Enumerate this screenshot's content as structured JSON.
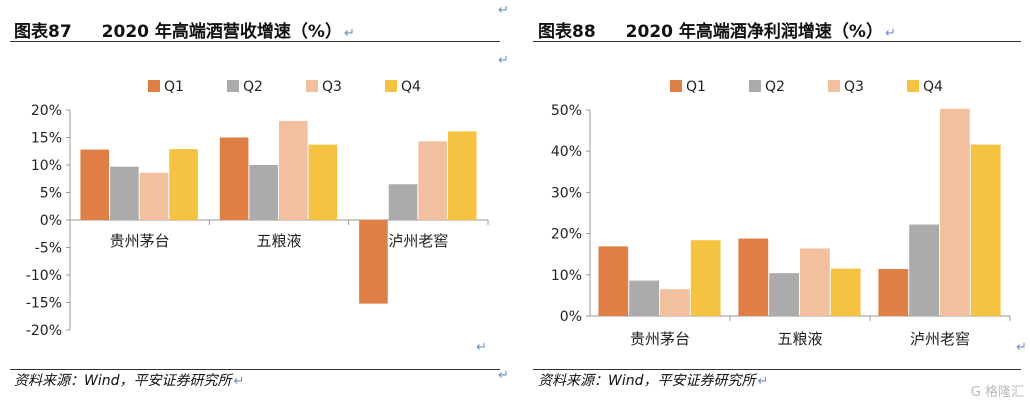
{
  "charts": [
    {
      "figure_no": "图表87",
      "title": "2020 年高端酒营收增速（%）",
      "source": "资料来源：Wind，平安证券研究所"
    },
    {
      "figure_no": "图表88",
      "title": "2020 年高端酒净利润增速（%）",
      "source": "资料来源：Wind，平安证券研究所"
    }
  ],
  "return_mark": "↵",
  "watermark": "格隆汇",
  "chart_data": [
    {
      "type": "bar",
      "categories": [
        "贵州茅台",
        "五粮液",
        "泸州老窖"
      ],
      "series": [
        {
          "name": "Q1",
          "color": "#E07F45",
          "values": [
            12.8,
            15.0,
            -15.2
          ]
        },
        {
          "name": "Q2",
          "color": "#ABABAB",
          "values": [
            9.7,
            10.0,
            6.5
          ]
        },
        {
          "name": "Q3",
          "color": "#F2C09E",
          "values": [
            8.6,
            18.0,
            14.3
          ]
        },
        {
          "name": "Q4",
          "color": "#F5C242",
          "values": [
            12.9,
            13.7,
            16.1
          ]
        }
      ],
      "ylim": [
        -20,
        20
      ],
      "yticks": [
        20,
        15,
        10,
        5,
        0,
        -5,
        -10,
        -15,
        -20
      ],
      "ytick_labels": [
        "20%",
        "15%",
        "10%",
        "5%",
        "0%",
        "-5%",
        "-10%",
        "-15%",
        "-20%"
      ],
      "legend": "top",
      "grid": false
    },
    {
      "type": "bar",
      "categories": [
        "贵州茅台",
        "五粮液",
        "泸州老窖"
      ],
      "series": [
        {
          "name": "Q1",
          "color": "#E07F45",
          "values": [
            16.9,
            18.8,
            11.4
          ]
        },
        {
          "name": "Q2",
          "color": "#ABABAB",
          "values": [
            8.6,
            10.4,
            22.2
          ]
        },
        {
          "name": "Q3",
          "color": "#F2C09E",
          "values": [
            6.5,
            16.4,
            50.3
          ]
        },
        {
          "name": "Q4",
          "color": "#F5C242",
          "values": [
            18.4,
            11.5,
            41.6
          ]
        }
      ],
      "ylim": [
        0,
        50
      ],
      "yticks": [
        50,
        40,
        30,
        20,
        10,
        0
      ],
      "ytick_labels": [
        "50%",
        "40%",
        "30%",
        "20%",
        "10%",
        "0%"
      ],
      "legend": "top",
      "grid": false
    }
  ]
}
